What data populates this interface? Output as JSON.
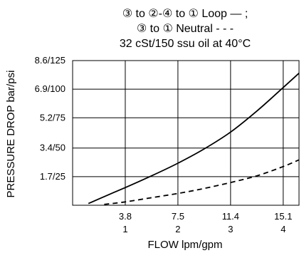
{
  "chart_data": {
    "type": "line",
    "title_lines": [
      "③ to ②-④ to ① Loop — ;",
      "③ to ① Neutral - - -",
      "32 cSt/150 ssu oil at 40°C"
    ],
    "xlabel": "FLOW lpm/gpm",
    "ylabel": "PRESSURE DROP bar/psi",
    "xlim": [
      0,
      4.3
    ],
    "ylim": [
      0,
      8.6
    ],
    "x_ticks": [
      {
        "value": 1,
        "label_top": "3.8",
        "label_bottom": "1"
      },
      {
        "value": 2,
        "label_top": "7.5",
        "label_bottom": "2"
      },
      {
        "value": 3,
        "label_top": "11.4",
        "label_bottom": "3"
      },
      {
        "value": 4,
        "label_top": "15.1",
        "label_bottom": "4"
      }
    ],
    "y_ticks": [
      {
        "value": 1.7,
        "label": "1.7/25"
      },
      {
        "value": 3.4,
        "label": "3.4/50"
      },
      {
        "value": 5.2,
        "label": "5.2/75"
      },
      {
        "value": 6.9,
        "label": "6.9/100"
      },
      {
        "value": 8.6,
        "label": "8.6/125"
      }
    ],
    "grid": true,
    "series": [
      {
        "style": "solid",
        "x": [
          0.3,
          0.7,
          1.0,
          1.5,
          2.0,
          2.5,
          3.0,
          3.5,
          4.0,
          4.3
        ],
        "y": [
          0.1,
          0.65,
          1.05,
          1.75,
          2.5,
          3.35,
          4.35,
          5.6,
          7.0,
          7.85
        ]
      },
      {
        "style": "dashed",
        "x": [
          0.6,
          1.0,
          1.5,
          2.0,
          2.5,
          3.0,
          3.5,
          4.0,
          4.3
        ],
        "y": [
          0.05,
          0.2,
          0.45,
          0.7,
          1.0,
          1.35,
          1.75,
          2.3,
          2.7
        ]
      }
    ]
  }
}
